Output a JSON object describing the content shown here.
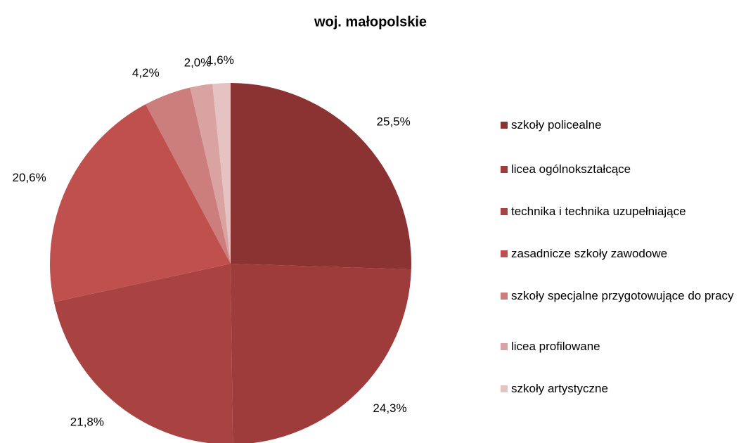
{
  "chart_data": {
    "type": "pie",
    "title": "woj. małopolskie",
    "categories": [
      "szkoły policealne",
      "licea ogólnokształcące",
      "technika i technika uzupełniające",
      "zasadnicze szkoły zawodowe",
      "szkoły specjalne przygotowujące do pracy",
      "licea profilowane",
      "szkoły artystyczne"
    ],
    "values": [
      25.5,
      24.3,
      21.8,
      20.6,
      4.2,
      2.0,
      1.6
    ],
    "value_labels": [
      "25,5%",
      "24,3%",
      "21,8%",
      "20,6%",
      "4,2%",
      "2,0%",
      "1,6%"
    ],
    "colors": [
      "#8b3232",
      "#9e3b3b",
      "#a94341",
      "#c0504d",
      "#cc7e7c",
      "#d9a3a2",
      "#e4c3c2"
    ],
    "legend": "right"
  }
}
